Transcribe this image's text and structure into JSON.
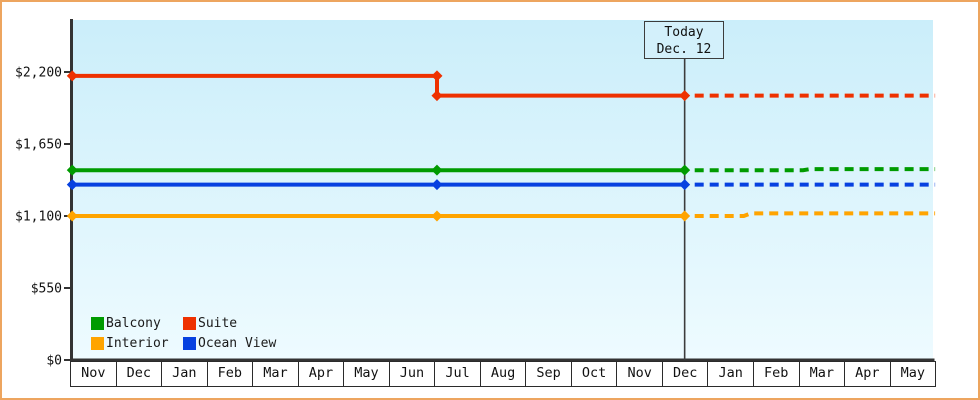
{
  "today_flag": {
    "line1": "Today",
    "line2": "Dec. 12"
  },
  "chart_data": {
    "type": "line",
    "title": "",
    "x_axis": {
      "categories": [
        "Nov",
        "Dec",
        "Jan",
        "Feb",
        "Mar",
        "Apr",
        "May",
        "Jun",
        "Jul",
        "Aug",
        "Sep",
        "Oct",
        "Nov",
        "Dec",
        "Jan",
        "Feb",
        "Mar",
        "Apr",
        "May"
      ],
      "unit": "month"
    },
    "y_axis": {
      "range": [
        0,
        2600
      ],
      "grid": false,
      "ticks": [
        {
          "v": 0,
          "label": "$0"
        },
        {
          "v": 550,
          "label": "$550"
        },
        {
          "v": 1100,
          "label": "$1,100"
        },
        {
          "v": 1650,
          "label": "$1,650"
        },
        {
          "v": 2200,
          "label": "$2,200"
        }
      ]
    },
    "today": {
      "u": 13.5,
      "label": "Today Dec. 12"
    },
    "legend": {
      "position": "bottom-left",
      "rows": [
        [
          "Balcony",
          "Suite"
        ],
        [
          "Interior",
          "Ocean View"
        ]
      ]
    },
    "series": [
      {
        "name": "Balcony",
        "color": "#009B00",
        "solid": [
          [
            0.05,
            1450
          ],
          [
            13.5,
            1450
          ]
        ],
        "dashed": [
          [
            13.5,
            1450
          ],
          [
            16.1,
            1450
          ],
          [
            16.25,
            1458
          ],
          [
            19,
            1458
          ]
        ],
        "markers": [
          [
            0.05,
            1450
          ],
          [
            8.06,
            1450
          ],
          [
            13.5,
            1450
          ]
        ]
      },
      {
        "name": "Suite",
        "color": "#EE3100",
        "solid": [
          [
            0.05,
            2170
          ],
          [
            8.06,
            2170
          ],
          [
            8.06,
            2020
          ],
          [
            13.5,
            2020
          ]
        ],
        "dashed": [
          [
            13.5,
            2020
          ],
          [
            19,
            2020
          ]
        ],
        "markers": [
          [
            0.05,
            2170
          ],
          [
            8.06,
            2170
          ],
          [
            8.06,
            2020
          ],
          [
            13.5,
            2020
          ]
        ]
      },
      {
        "name": "Interior",
        "color": "#FFA400",
        "solid": [
          [
            0.05,
            1100
          ],
          [
            13.5,
            1100
          ]
        ],
        "dashed": [
          [
            13.5,
            1100
          ],
          [
            14.8,
            1100
          ],
          [
            14.95,
            1120
          ],
          [
            19,
            1120
          ]
        ],
        "markers": [
          [
            0.05,
            1100
          ],
          [
            8.06,
            1100
          ],
          [
            13.5,
            1100
          ]
        ]
      },
      {
        "name": "Ocean View",
        "color": "#0741E0",
        "solid": [
          [
            0.05,
            1340
          ],
          [
            13.5,
            1340
          ]
        ],
        "dashed": [
          [
            13.5,
            1340
          ],
          [
            19,
            1340
          ]
        ],
        "markers": [
          [
            0.05,
            1340
          ],
          [
            8.06,
            1340
          ],
          [
            13.5,
            1340
          ]
        ]
      }
    ]
  }
}
